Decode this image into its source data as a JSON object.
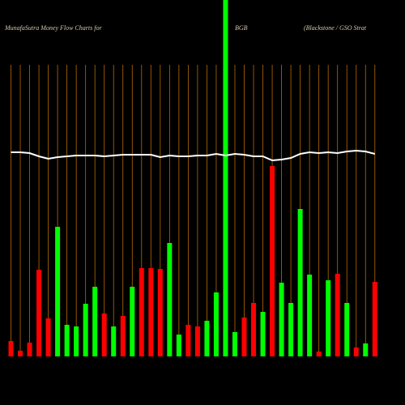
{
  "chart_data": {
    "type": "bar",
    "title": "MunafaSutra  Money Flow  Charts for",
    "ticker": "BGB",
    "company": "(Blackstone   / GSO Strat",
    "values": [
      19,
      7,
      17,
      107,
      47,
      160,
      39,
      37,
      65,
      86,
      53,
      37,
      50,
      86,
      109,
      109,
      108,
      140,
      27,
      39,
      37,
      44,
      79,
      440,
      30,
      48,
      66,
      55,
      235,
      91,
      66,
      182,
      101,
      6,
      94,
      102,
      66,
      11,
      16,
      92
    ],
    "colors": [
      "#ff0000",
      "#ff0000",
      "#ff0000",
      "#ff0000",
      "#ff0000",
      "#00ff00",
      "#00ff00",
      "#00ff00",
      "#00ff00",
      "#00ff00",
      "#ff0000",
      "#00ff00",
      "#ff0000",
      "#00ff00",
      "#ff0000",
      "#ff0000",
      "#ff0000",
      "#00ff00",
      "#00ff00",
      "#ff0000",
      "#ff0000",
      "#00ff00",
      "#00ff00",
      "#00ff00",
      "#00ff00",
      "#ff0000",
      "#ff0000",
      "#00ff00",
      "#ff0000",
      "#00ff00",
      "#00ff00",
      "#00ff00",
      "#00ff00",
      "#ff0000",
      "#00ff00",
      "#ff0000",
      "#00ff00",
      "#ff0000",
      "#00ff00",
      "#ff0000"
    ],
    "line_values": [
      252,
      252,
      251,
      247,
      244,
      246,
      247,
      248,
      248,
      248,
      247,
      248,
      249,
      249,
      249,
      249,
      246,
      248,
      247,
      247,
      248,
      248,
      250,
      248,
      250,
      249,
      247,
      247,
      242,
      243,
      245,
      250,
      252,
      251,
      252,
      251,
      253,
      254,
      253,
      250
    ],
    "line_color": "#ffffff",
    "ylim": [
      0,
      440
    ]
  }
}
